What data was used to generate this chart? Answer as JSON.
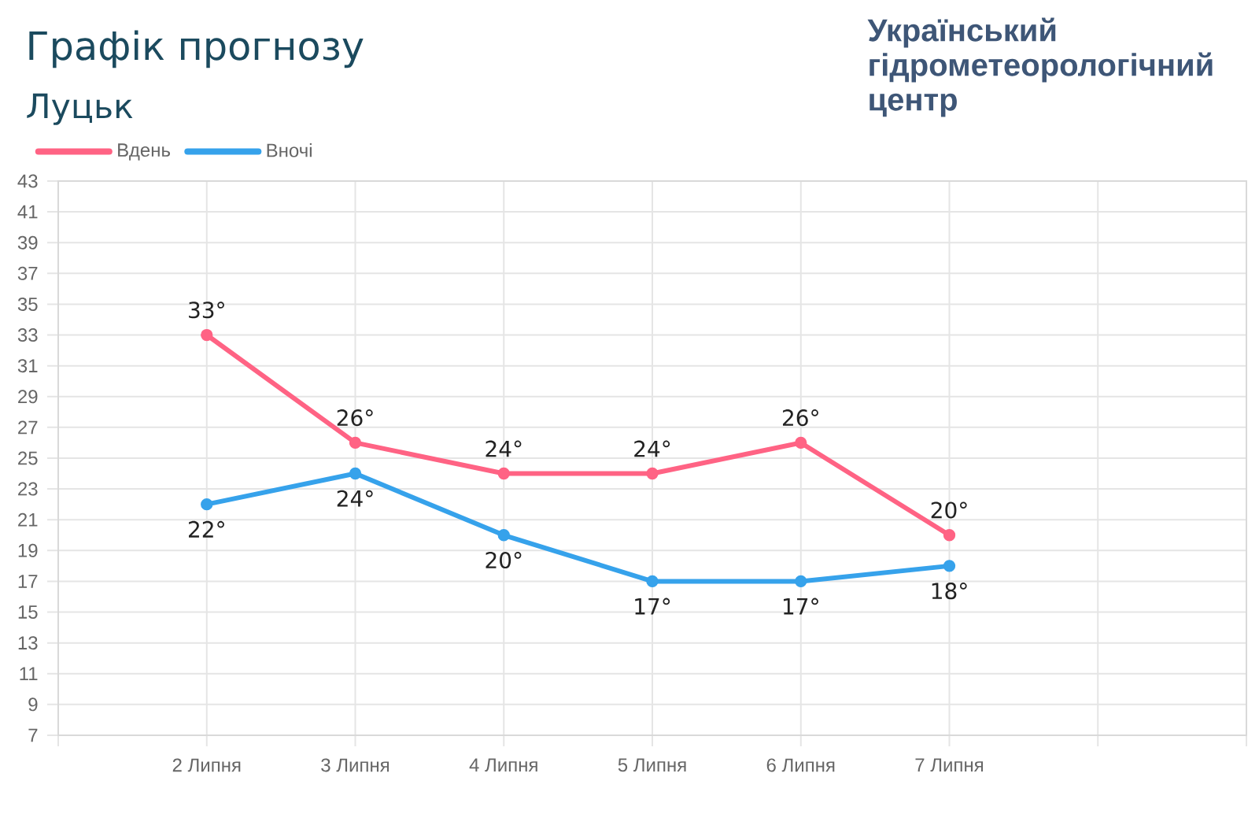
{
  "chart_data": {
    "type": "line",
    "title": "Графік прогнозу",
    "subtitle": "Луцьк",
    "annotations": [
      "Український гідрометеорологічний центр"
    ],
    "categories": [
      null,
      "2 Липня",
      "3 Липня",
      "4 Липня",
      "5 Липня",
      "6 Липня",
      "7 Липня",
      null,
      null
    ],
    "series": [
      {
        "name": "Вдень",
        "color": "#ff6384",
        "values": [
          null,
          33,
          26,
          24,
          24,
          26,
          20,
          null,
          null
        ],
        "value_labels": [
          null,
          "33°",
          "26°",
          "24°",
          "24°",
          "26°",
          "20°",
          null,
          null
        ]
      },
      {
        "name": "Вночі",
        "color": "#36a2eb",
        "values": [
          null,
          22,
          24,
          20,
          17,
          17,
          18,
          null,
          null
        ],
        "value_labels": [
          null,
          "22°",
          "24°",
          "20°",
          "17°",
          "17°",
          "18°",
          null,
          null
        ]
      }
    ],
    "ylim": [
      7,
      43
    ],
    "yticks": [
      7,
      9,
      11,
      13,
      15,
      17,
      19,
      21,
      23,
      25,
      27,
      29,
      31,
      33,
      35,
      37,
      39,
      41,
      43
    ],
    "grid": true,
    "legend": "top left",
    "marker": "circle",
    "line_style": "solid"
  }
}
